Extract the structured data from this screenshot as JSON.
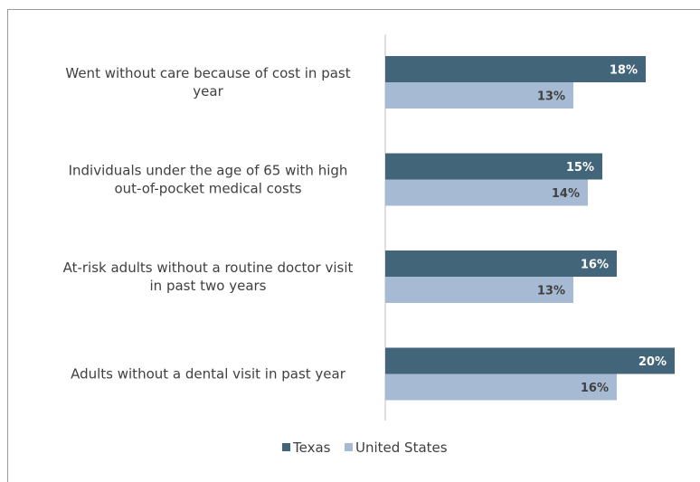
{
  "chart_data": {
    "type": "bar",
    "orientation": "horizontal",
    "categories": [
      [
        "Went without care because of cost in past",
        "year"
      ],
      [
        "Individuals under the age of 65 with high",
        "out-of-pocket medical costs"
      ],
      [
        "At-risk adults without a routine doctor visit",
        "in past two years"
      ],
      [
        "Adults without a dental visit in past year"
      ]
    ],
    "series": [
      {
        "name": "Texas",
        "values": [
          18,
          15,
          16,
          20
        ],
        "labels": [
          "18%",
          "15%",
          "16%",
          "20%"
        ],
        "color": "#426579",
        "label_color": "#ffffff"
      },
      {
        "name": "United States",
        "values": [
          13,
          14,
          13,
          16
        ],
        "labels": [
          "13%",
          "14%",
          "13%",
          "16%"
        ],
        "color": "#a6bad3",
        "label_color": "#404040"
      }
    ],
    "xlim": [
      0,
      20
    ],
    "grid": false,
    "legend_position": "bottom"
  }
}
